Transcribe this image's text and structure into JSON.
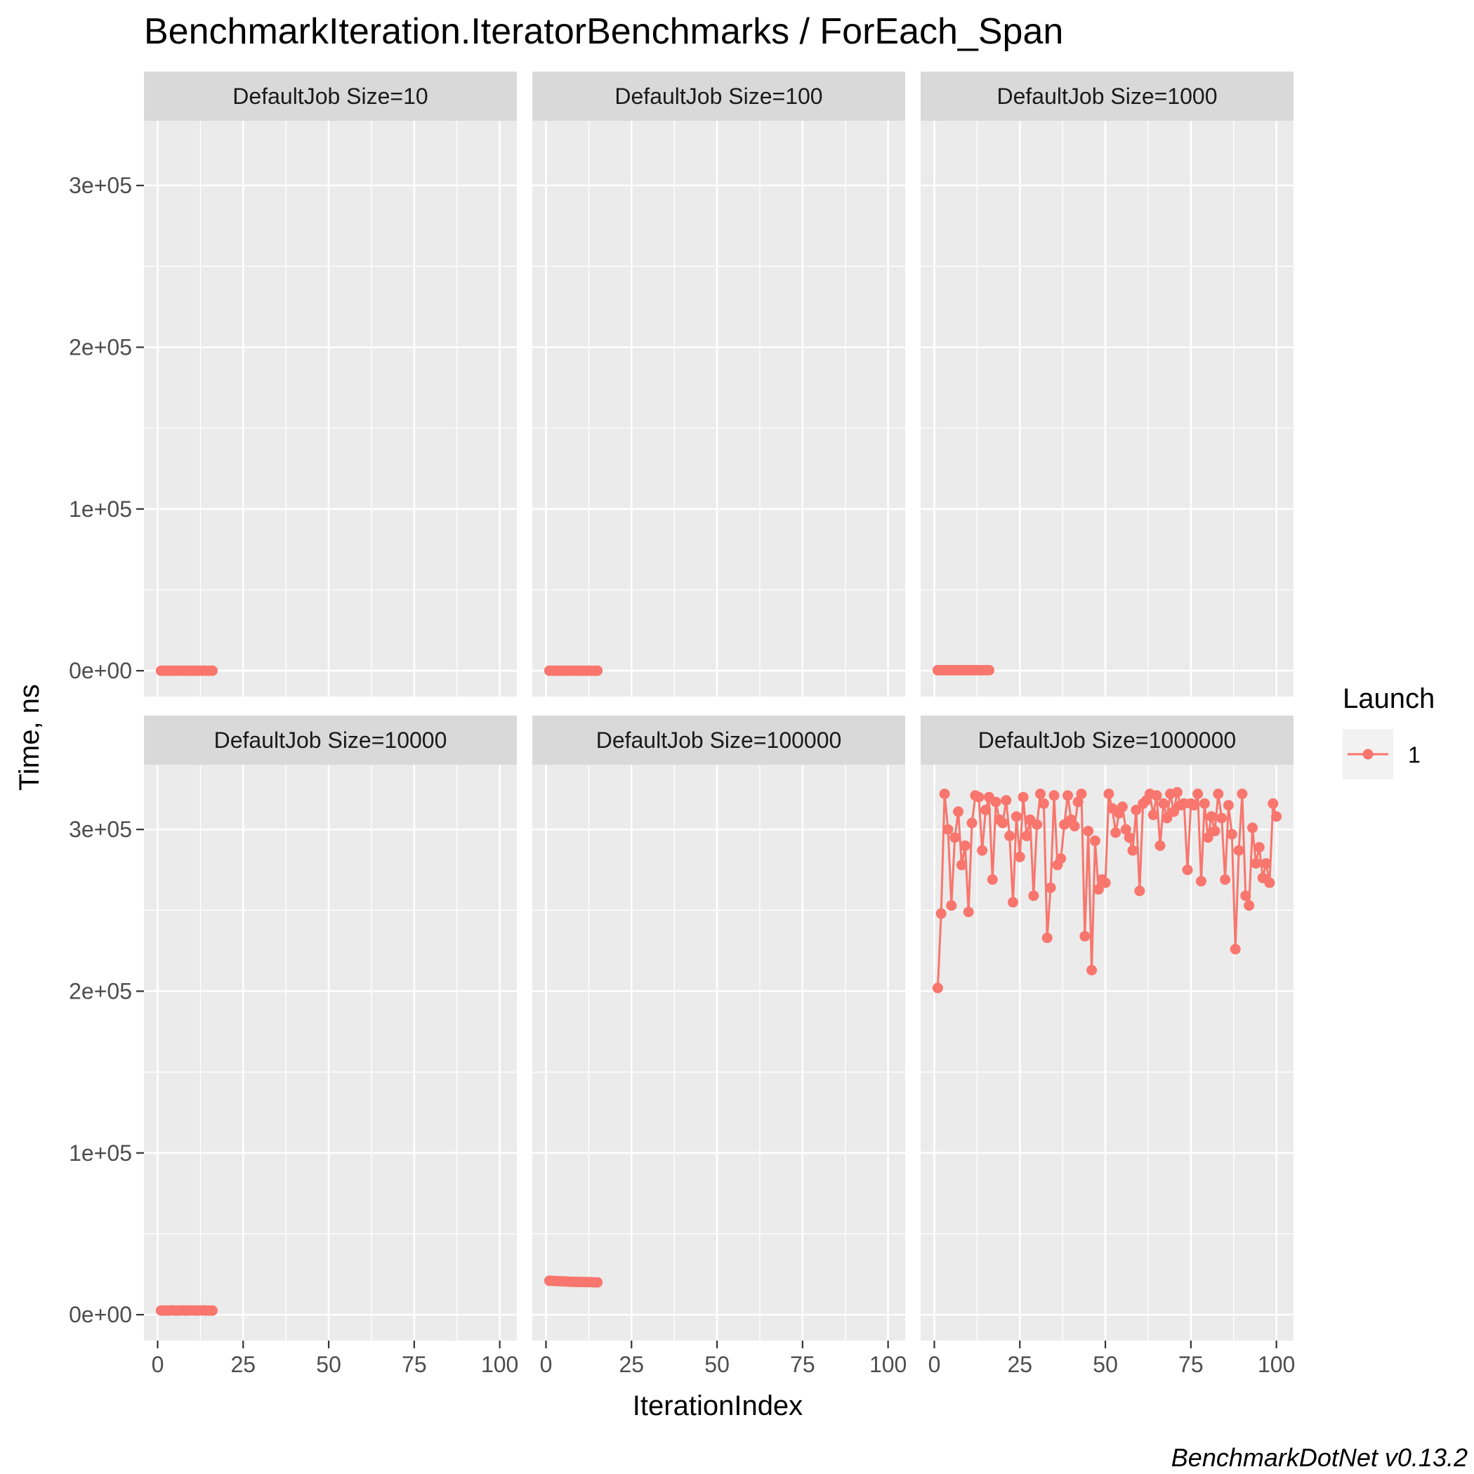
{
  "title": "BenchmarkIteration.IteratorBenchmarks / ForEach_Span",
  "caption": "BenchmarkDotNet v0.13.2",
  "colors": {
    "series": "#f8766d",
    "panel": "#ebebeb",
    "strip": "#d9d9d9"
  },
  "chart_data": {
    "type": "line",
    "facet_layout": "2x3 grid, shared axes",
    "xlabel": "IterationIndex",
    "ylabel": "Time, ns",
    "xlim": [
      -4,
      105
    ],
    "ylim": [
      -16000,
      340000
    ],
    "x_ticks": [
      0,
      25,
      50,
      75,
      100
    ],
    "x_tick_labels": [
      "0",
      "25",
      "50",
      "75",
      "100"
    ],
    "y_ticks": [
      0,
      100000,
      200000,
      300000
    ],
    "y_tick_labels": [
      "0e+00",
      "1e+05",
      "2e+05",
      "3e+05"
    ],
    "grid": true,
    "legend": {
      "title": "Launch",
      "entries": [
        "1"
      ],
      "position": "right"
    },
    "panels": [
      {
        "label": "DefaultJob Size=10",
        "series": [
          {
            "name": "1",
            "x": [
              1,
              2,
              3,
              4,
              5,
              6,
              7,
              8,
              9,
              10,
              11,
              12,
              13,
              14,
              15,
              16
            ],
            "y": [
              9,
              9,
              9,
              9,
              9,
              9,
              9,
              9,
              9,
              9,
              9,
              9,
              9,
              9,
              9,
              9
            ]
          }
        ]
      },
      {
        "label": "DefaultJob Size=100",
        "series": [
          {
            "name": "1",
            "x": [
              1,
              2,
              3,
              4,
              5,
              6,
              7,
              8,
              9,
              10,
              11,
              12,
              13,
              14,
              15
            ],
            "y": [
              35,
              35,
              35,
              35,
              35,
              35,
              35,
              35,
              35,
              35,
              35,
              35,
              35,
              35,
              35
            ]
          }
        ]
      },
      {
        "label": "DefaultJob Size=1000",
        "series": [
          {
            "name": "1",
            "x": [
              1,
              2,
              3,
              4,
              5,
              6,
              7,
              8,
              9,
              10,
              11,
              12,
              13,
              14,
              15,
              16
            ],
            "y": [
              310,
              310,
              310,
              310,
              310,
              310,
              310,
              310,
              310,
              310,
              310,
              310,
              310,
              310,
              310,
              310
            ]
          }
        ]
      },
      {
        "label": "DefaultJob Size=10000",
        "series": [
          {
            "name": "1",
            "x": [
              1,
              2,
              3,
              4,
              5,
              6,
              7,
              8,
              9,
              10,
              11,
              12,
              13,
              14,
              15,
              16
            ],
            "y": [
              2600,
              2600,
              2600,
              2650,
              2600,
              2600,
              2650,
              2600,
              2600,
              2650,
              2600,
              2600,
              2650,
              2600,
              2600,
              2600
            ]
          }
        ]
      },
      {
        "label": "DefaultJob Size=100000",
        "series": [
          {
            "name": "1",
            "x": [
              1,
              2,
              3,
              4,
              5,
              6,
              7,
              8,
              9,
              10,
              11,
              12,
              13,
              14,
              15
            ],
            "y": [
              21000,
              20900,
              20800,
              20700,
              20600,
              20500,
              20400,
              20300,
              20300,
              20200,
              20200,
              20100,
              20100,
              20000,
              20000
            ]
          }
        ]
      },
      {
        "label": "DefaultJob Size=1000000",
        "series": [
          {
            "name": "1",
            "x": [
              1,
              2,
              3,
              4,
              5,
              6,
              7,
              8,
              9,
              10,
              11,
              12,
              13,
              14,
              15,
              16,
              17,
              18,
              19,
              20,
              21,
              22,
              23,
              24,
              25,
              26,
              27,
              28,
              29,
              30,
              31,
              32,
              33,
              34,
              35,
              36,
              37,
              38,
              39,
              40,
              41,
              42,
              43,
              44,
              45,
              46,
              47,
              48,
              49,
              50,
              51,
              52,
              53,
              54,
              55,
              56,
              57,
              58,
              59,
              60,
              61,
              62,
              63,
              64,
              65,
              66,
              67,
              68,
              69,
              70,
              71,
              72,
              73,
              74,
              75,
              76,
              77,
              78,
              79,
              80,
              81,
              82,
              83,
              84,
              85,
              86,
              87,
              88,
              89,
              90,
              91,
              92,
              93,
              94,
              95,
              96,
              97,
              98,
              99,
              100
            ],
            "y": [
              202000,
              248000,
              322000,
              300000,
              253000,
              295000,
              311000,
              278000,
              290000,
              249000,
              304000,
              321000,
              320000,
              287000,
              312000,
              320000,
              269000,
              317000,
              306000,
              304000,
              318000,
              296000,
              255000,
              308000,
              283000,
              320000,
              296000,
              306000,
              259000,
              303000,
              322000,
              316000,
              233000,
              264000,
              321000,
              278000,
              282000,
              303000,
              321000,
              306000,
              302000,
              317000,
              322000,
              234000,
              299000,
              213000,
              293000,
              263000,
              269000,
              267000,
              322000,
              313000,
              298000,
              310000,
              314000,
              300000,
              295000,
              287000,
              312000,
              262000,
              316000,
              318000,
              322000,
              309000,
              321000,
              290000,
              316000,
              307000,
              322000,
              311000,
              323000,
              315000,
              316000,
              275000,
              316000,
              315000,
              322000,
              268000,
              316000,
              295000,
              308000,
              299000,
              322000,
              307000,
              269000,
              315000,
              297000,
              226000,
              287000,
              322000,
              259000,
              253000,
              301000,
              279000,
              289000,
              270000,
              279000,
              267000,
              316000,
              308000
            ]
          }
        ]
      }
    ]
  }
}
